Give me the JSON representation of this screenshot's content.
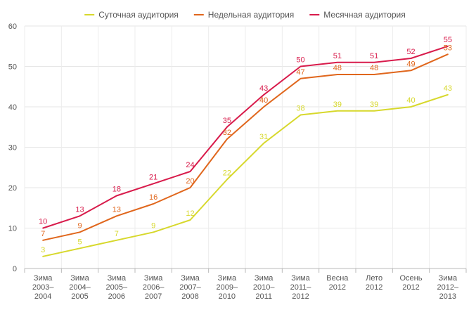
{
  "chart_data": {
    "type": "line",
    "title": "",
    "xlabel": "",
    "ylabel": "",
    "ylim": [
      0,
      60
    ],
    "yticks": [
      0,
      10,
      20,
      30,
      40,
      50,
      60
    ],
    "grid": true,
    "legend_position": "top-center",
    "categories": [
      [
        "Зима",
        "2003–",
        "2004"
      ],
      [
        "Зима",
        "2004–",
        "2005"
      ],
      [
        "Зима",
        "2005–",
        "2006"
      ],
      [
        "Зима",
        "2006–",
        "2007"
      ],
      [
        "Зима",
        "2007–",
        "2008"
      ],
      [
        "Зима",
        "2009–",
        "2010"
      ],
      [
        "Зима",
        "2010–",
        "2011"
      ],
      [
        "Зима",
        "2011–",
        "2012"
      ],
      [
        "Весна",
        "2012"
      ],
      [
        "Лето",
        "2012"
      ],
      [
        "Осень",
        "2012"
      ],
      [
        "Зима",
        "2012–",
        "2013"
      ]
    ],
    "series": [
      {
        "name": "Суточная аудитория",
        "color": "#d7d82c",
        "values": [
          3,
          5,
          7,
          9,
          12,
          22,
          31,
          38,
          39,
          39,
          40,
          43
        ],
        "labels": [
          3,
          5,
          7,
          9,
          12,
          22,
          31,
          38,
          39,
          39,
          40,
          43
        ]
      },
      {
        "name": "Недельная аудитория",
        "color": "#e0661c",
        "values": [
          7,
          9,
          13,
          16,
          20,
          32,
          40,
          47,
          48,
          48,
          49,
          53
        ],
        "labels": [
          7,
          9,
          13,
          16,
          20,
          32,
          40,
          47,
          48,
          48,
          49,
          53
        ]
      },
      {
        "name": "Месячная аудитория",
        "color": "#d81b4b",
        "values": [
          10,
          13,
          18,
          21,
          24,
          35,
          43,
          50,
          51,
          51,
          52,
          55
        ],
        "labels": [
          10,
          13,
          18,
          21,
          24,
          35,
          43,
          50,
          51,
          51,
          52,
          55
        ]
      }
    ]
  }
}
